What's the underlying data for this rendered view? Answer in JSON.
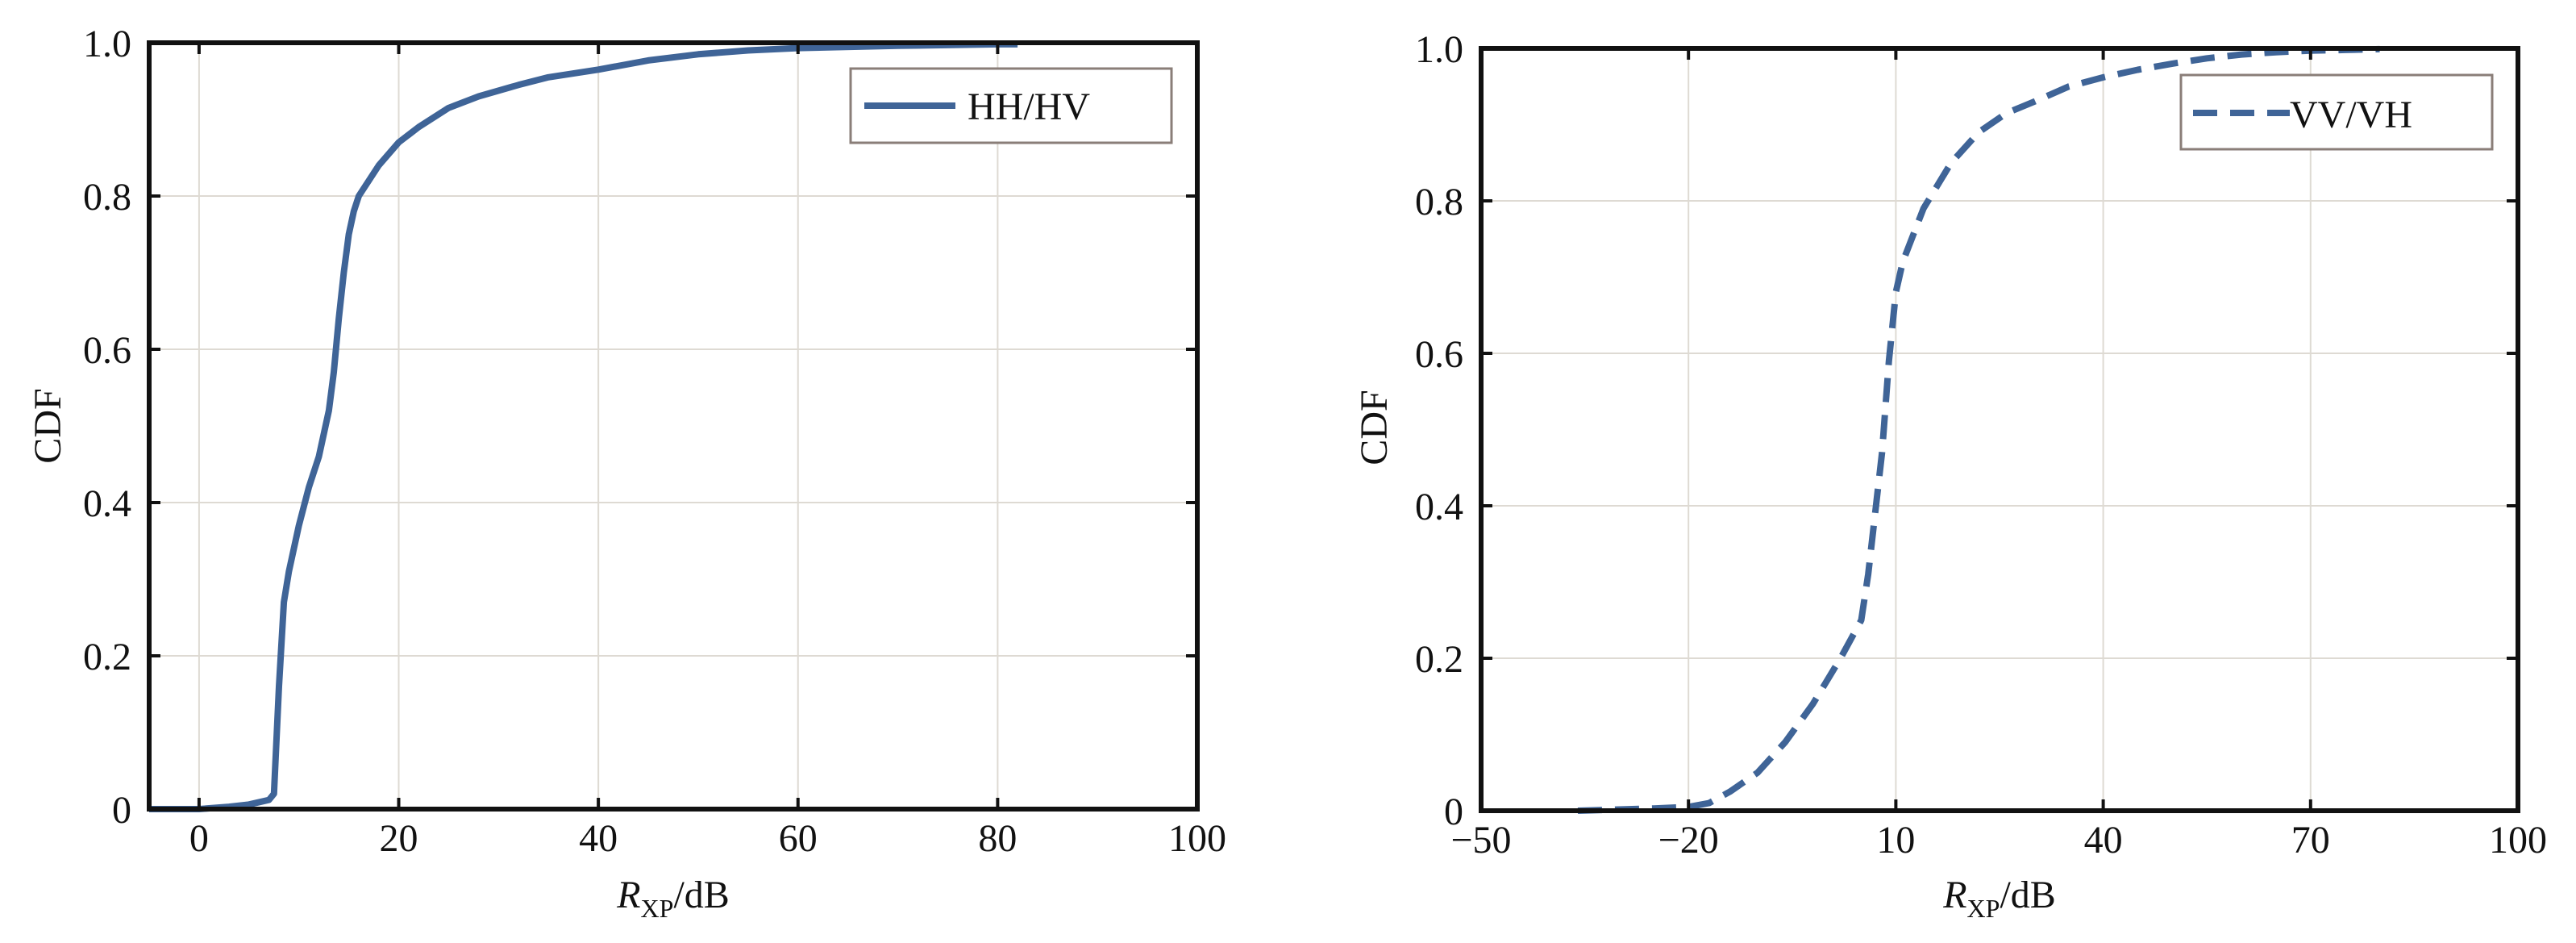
{
  "chart_data": [
    {
      "type": "line",
      "panel": "left",
      "xlabel": "R",
      "xlabel_subscript": "XP",
      "xlabel_unit": "/dB",
      "ylabel": "CDF",
      "xlim": [
        -5,
        100
      ],
      "ylim": [
        0,
        1
      ],
      "xticks": [
        0,
        20,
        40,
        60,
        80,
        100
      ],
      "xtick_labels": [
        "0",
        "20",
        "40",
        "60",
        "80",
        "100"
      ],
      "yticks": [
        0,
        0.2,
        0.4,
        0.6,
        0.8,
        1
      ],
      "ytick_labels": [
        "0",
        "0.2",
        "0.4",
        "0.6",
        "0.8",
        "1.0"
      ],
      "grid": true,
      "legend_position": "top-right",
      "series": [
        {
          "name": "HH/HV",
          "line_style": "solid",
          "color": "#3F6497",
          "x": [
            -5,
            0,
            3,
            5,
            7,
            7.5,
            8,
            8.5,
            9,
            10,
            11,
            12,
            13,
            13.5,
            14,
            14.5,
            15,
            15.5,
            16,
            18,
            20,
            22,
            25,
            28,
            32,
            35,
            40,
            45,
            50,
            55,
            60,
            70,
            80,
            82
          ],
          "y": [
            0,
            0,
            0.003,
            0.006,
            0.012,
            0.02,
            0.16,
            0.27,
            0.31,
            0.37,
            0.42,
            0.46,
            0.52,
            0.57,
            0.64,
            0.7,
            0.75,
            0.78,
            0.8,
            0.84,
            0.87,
            0.89,
            0.915,
            0.93,
            0.945,
            0.955,
            0.965,
            0.977,
            0.985,
            0.99,
            0.993,
            0.996,
            0.998,
            0.998
          ]
        }
      ]
    },
    {
      "type": "line",
      "panel": "right",
      "xlabel": "R",
      "xlabel_subscript": "XP",
      "xlabel_unit": "/dB",
      "ylabel": "CDF",
      "xlim": [
        -50,
        100
      ],
      "ylim": [
        0,
        1
      ],
      "xticks": [
        -50,
        -20,
        10,
        40,
        70,
        100
      ],
      "xtick_labels": [
        "−50",
        "−20",
        "10",
        "40",
        "70",
        "100"
      ],
      "yticks": [
        0,
        0.2,
        0.4,
        0.6,
        0.8,
        1
      ],
      "ytick_labels": [
        "0",
        "0.2",
        "0.4",
        "0.6",
        "0.8",
        "1.0"
      ],
      "grid": true,
      "legend_position": "top-right",
      "series": [
        {
          "name": "VV/VH",
          "line_style": "dashed",
          "color": "#3F6497",
          "x": [
            -36,
            -25,
            -20,
            -17,
            -14,
            -10,
            -6,
            -2,
            2,
            5,
            6,
            7,
            8,
            9,
            10,
            11,
            14,
            18,
            22,
            26,
            30,
            35,
            40,
            45,
            50,
            55,
            60,
            65,
            70,
            75,
            80
          ],
          "y": [
            0,
            0.003,
            0.005,
            0.01,
            0.025,
            0.05,
            0.09,
            0.14,
            0.2,
            0.25,
            0.31,
            0.39,
            0.47,
            0.59,
            0.68,
            0.72,
            0.79,
            0.85,
            0.89,
            0.915,
            0.93,
            0.95,
            0.962,
            0.972,
            0.98,
            0.987,
            0.992,
            0.995,
            0.997,
            0.998,
            0.999
          ]
        }
      ]
    }
  ]
}
